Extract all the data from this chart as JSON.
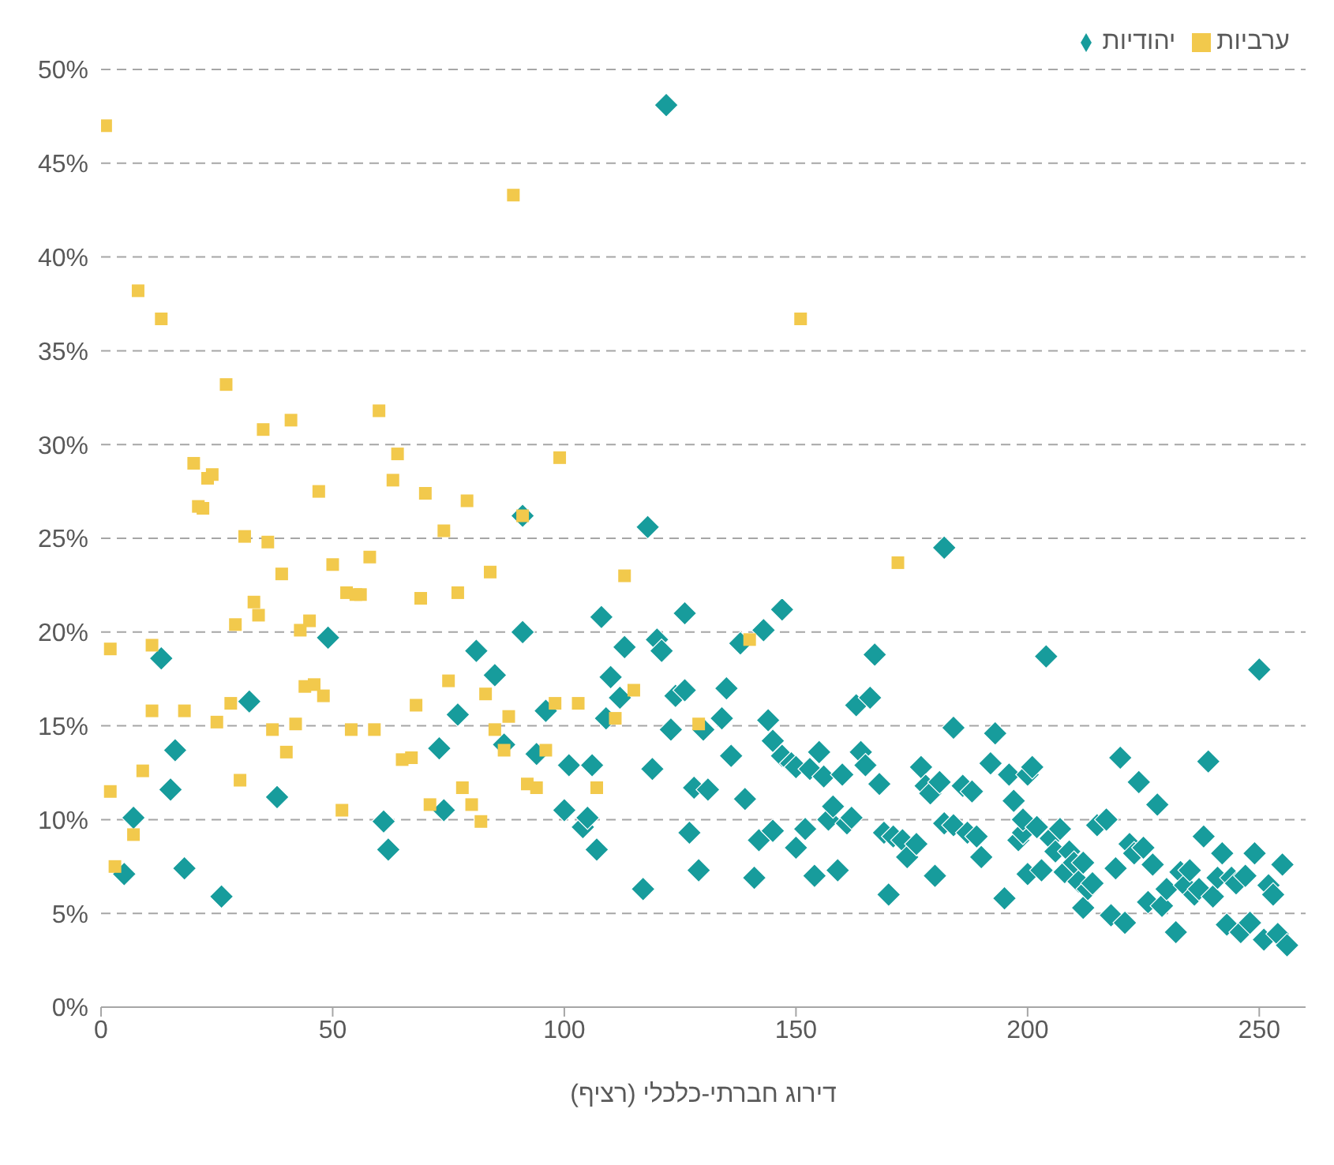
{
  "chart_data": {
    "type": "scatter",
    "xlabel": "דירוג חברתי-כלכלי (רציף)",
    "xlim": [
      0,
      260
    ],
    "xticks": [
      0,
      50,
      100,
      150,
      200,
      250
    ],
    "ylim": [
      0,
      50
    ],
    "yticks": [
      {
        "value": 0,
        "label": "0%"
      },
      {
        "value": 5,
        "label": "5%"
      },
      {
        "value": 10,
        "label": "10%"
      },
      {
        "value": 15,
        "label": "15%"
      },
      {
        "value": 20,
        "label": "20%"
      },
      {
        "value": 25,
        "label": "25%"
      },
      {
        "value": 30,
        "label": "30%"
      },
      {
        "value": 35,
        "label": "35%"
      },
      {
        "value": 40,
        "label": "40%"
      },
      {
        "value": 45,
        "label": "45%"
      },
      {
        "value": 50,
        "label": "50%"
      }
    ],
    "grid": "y",
    "legend": "top right",
    "series": [
      {
        "name": "יהודיות",
        "color": "#179c9c",
        "marker": "diamond",
        "x": [
          5,
          7,
          13,
          15,
          16,
          18,
          26,
          32,
          38,
          49,
          61,
          62,
          73,
          74,
          77,
          81,
          85,
          87,
          91,
          91,
          94,
          96,
          100,
          101,
          104,
          105,
          106,
          107,
          108,
          109,
          110,
          112,
          113,
          117,
          118,
          119,
          120,
          121,
          122,
          123,
          124,
          126,
          126,
          127,
          128,
          129,
          130,
          131,
          134,
          135,
          136,
          138,
          139,
          141,
          142,
          143,
          144,
          145,
          145,
          147,
          147,
          149,
          150,
          150,
          152,
          153,
          154,
          155,
          156,
          157,
          158,
          159,
          160,
          161,
          162,
          163,
          164,
          165,
          166,
          167,
          168,
          169,
          170,
          171,
          173,
          174,
          176,
          177,
          178,
          179,
          180,
          181,
          182,
          182,
          184,
          184,
          186,
          187,
          188,
          189,
          190,
          192,
          193,
          195,
          196,
          197,
          198,
          199,
          199,
          200,
          200,
          201,
          202,
          203,
          204,
          205,
          206,
          207,
          208,
          209,
          210,
          211,
          212,
          212,
          213,
          214,
          215,
          217,
          218,
          219,
          220,
          221,
          222,
          223,
          224,
          225,
          226,
          227,
          228,
          229,
          230,
          232,
          233,
          234,
          235,
          236,
          237,
          238,
          239,
          240,
          241,
          242,
          243,
          244,
          245,
          246,
          247,
          248,
          249,
          250,
          251,
          252,
          253,
          254,
          255,
          256
        ],
        "values": [
          7.1,
          10.1,
          18.6,
          11.6,
          13.7,
          7.4,
          5.9,
          16.3,
          11.2,
          19.7,
          9.9,
          8.4,
          13.8,
          10.5,
          15.6,
          19,
          17.7,
          14,
          20,
          26.2,
          13.5,
          15.8,
          10.5,
          12.9,
          9.6,
          10.1,
          12.9,
          8.4,
          20.8,
          15.4,
          17.6,
          16.5,
          19.2,
          6.3,
          25.6,
          12.7,
          19.6,
          19,
          48.1,
          14.8,
          16.6,
          16.9,
          21,
          9.3,
          11.7,
          7.3,
          14.8,
          11.6,
          15.4,
          17,
          13.4,
          19.4,
          11.1,
          6.9,
          8.9,
          20.1,
          15.3,
          9.4,
          14.2,
          21.2,
          13.4,
          13,
          8.5,
          12.8,
          9.5,
          12.7,
          7,
          13.6,
          12.3,
          10,
          10.7,
          7.3,
          12.4,
          9.8,
          10.1,
          16.1,
          13.6,
          12.9,
          16.5,
          18.8,
          11.9,
          9.3,
          6,
          9.1,
          8.9,
          8,
          8.7,
          12.8,
          11.8,
          11.4,
          7,
          12,
          24.5,
          9.8,
          9.7,
          14.9,
          11.8,
          9.3,
          11.5,
          9.1,
          8,
          13,
          14.6,
          5.8,
          12.4,
          11,
          8.9,
          9.3,
          10,
          12.4,
          7.1,
          12.8,
          9.6,
          7.3,
          18.7,
          9,
          8.3,
          9.5,
          7.2,
          8.3,
          7.7,
          6.7,
          7.7,
          5.3,
          6.3,
          6.6,
          9.7,
          10,
          4.9,
          7.4,
          13.3,
          4.5,
          8.7,
          8.2,
          12,
          8.5,
          5.6,
          7.6,
          10.8,
          5.4,
          6.3,
          4,
          7.2,
          6.5,
          7.3,
          6,
          6.3,
          9.1,
          13.1,
          5.9,
          6.9,
          8.2,
          4.4,
          6.9,
          6.6,
          4,
          7,
          4.5,
          8.2,
          18,
          3.6,
          6.5,
          6,
          3.9,
          7.6,
          3.3
        ]
      },
      {
        "name": "ערביות",
        "color": "#f2c94c",
        "marker": "square",
        "x": [
          1,
          2,
          2,
          3,
          7,
          8,
          9,
          11,
          11,
          13,
          18,
          20,
          21,
          22,
          23,
          24,
          25,
          27,
          28,
          29,
          30,
          31,
          33,
          34,
          35,
          36,
          37,
          39,
          40,
          41,
          42,
          43,
          44,
          45,
          46,
          47,
          48,
          50,
          52,
          53,
          54,
          55,
          56,
          58,
          59,
          60,
          63,
          64,
          65,
          67,
          68,
          69,
          70,
          71,
          74,
          75,
          77,
          78,
          79,
          80,
          82,
          83,
          84,
          85,
          87,
          88,
          89,
          91,
          92,
          94,
          96,
          98,
          99,
          103,
          107,
          111,
          113,
          115,
          129,
          140,
          151,
          172
        ],
        "values": [
          47,
          19.1,
          11.5,
          7.5,
          9.2,
          38.2,
          12.6,
          19.3,
          15.8,
          36.7,
          15.8,
          29,
          26.7,
          26.6,
          28.2,
          28.4,
          15.2,
          33.2,
          16.2,
          20.4,
          12.1,
          25.1,
          21.6,
          20.9,
          30.8,
          24.8,
          14.8,
          23.1,
          13.6,
          31.3,
          15.1,
          20.1,
          17.1,
          20.6,
          17.2,
          27.5,
          16.6,
          23.6,
          10.5,
          22.1,
          14.8,
          22,
          22,
          24,
          14.8,
          31.8,
          28.1,
          29.5,
          13.2,
          13.3,
          16.1,
          21.8,
          27.4,
          10.8,
          25.4,
          17.4,
          22.1,
          11.7,
          27,
          10.8,
          9.9,
          16.7,
          23.2,
          14.8,
          13.7,
          15.5,
          43.3,
          26.2,
          11.9,
          11.7,
          13.7,
          16.2,
          29.3,
          16.2,
          11.7,
          15.4,
          23,
          16.9,
          15.1,
          19.6,
          36.7,
          23.7
        ]
      }
    ]
  }
}
